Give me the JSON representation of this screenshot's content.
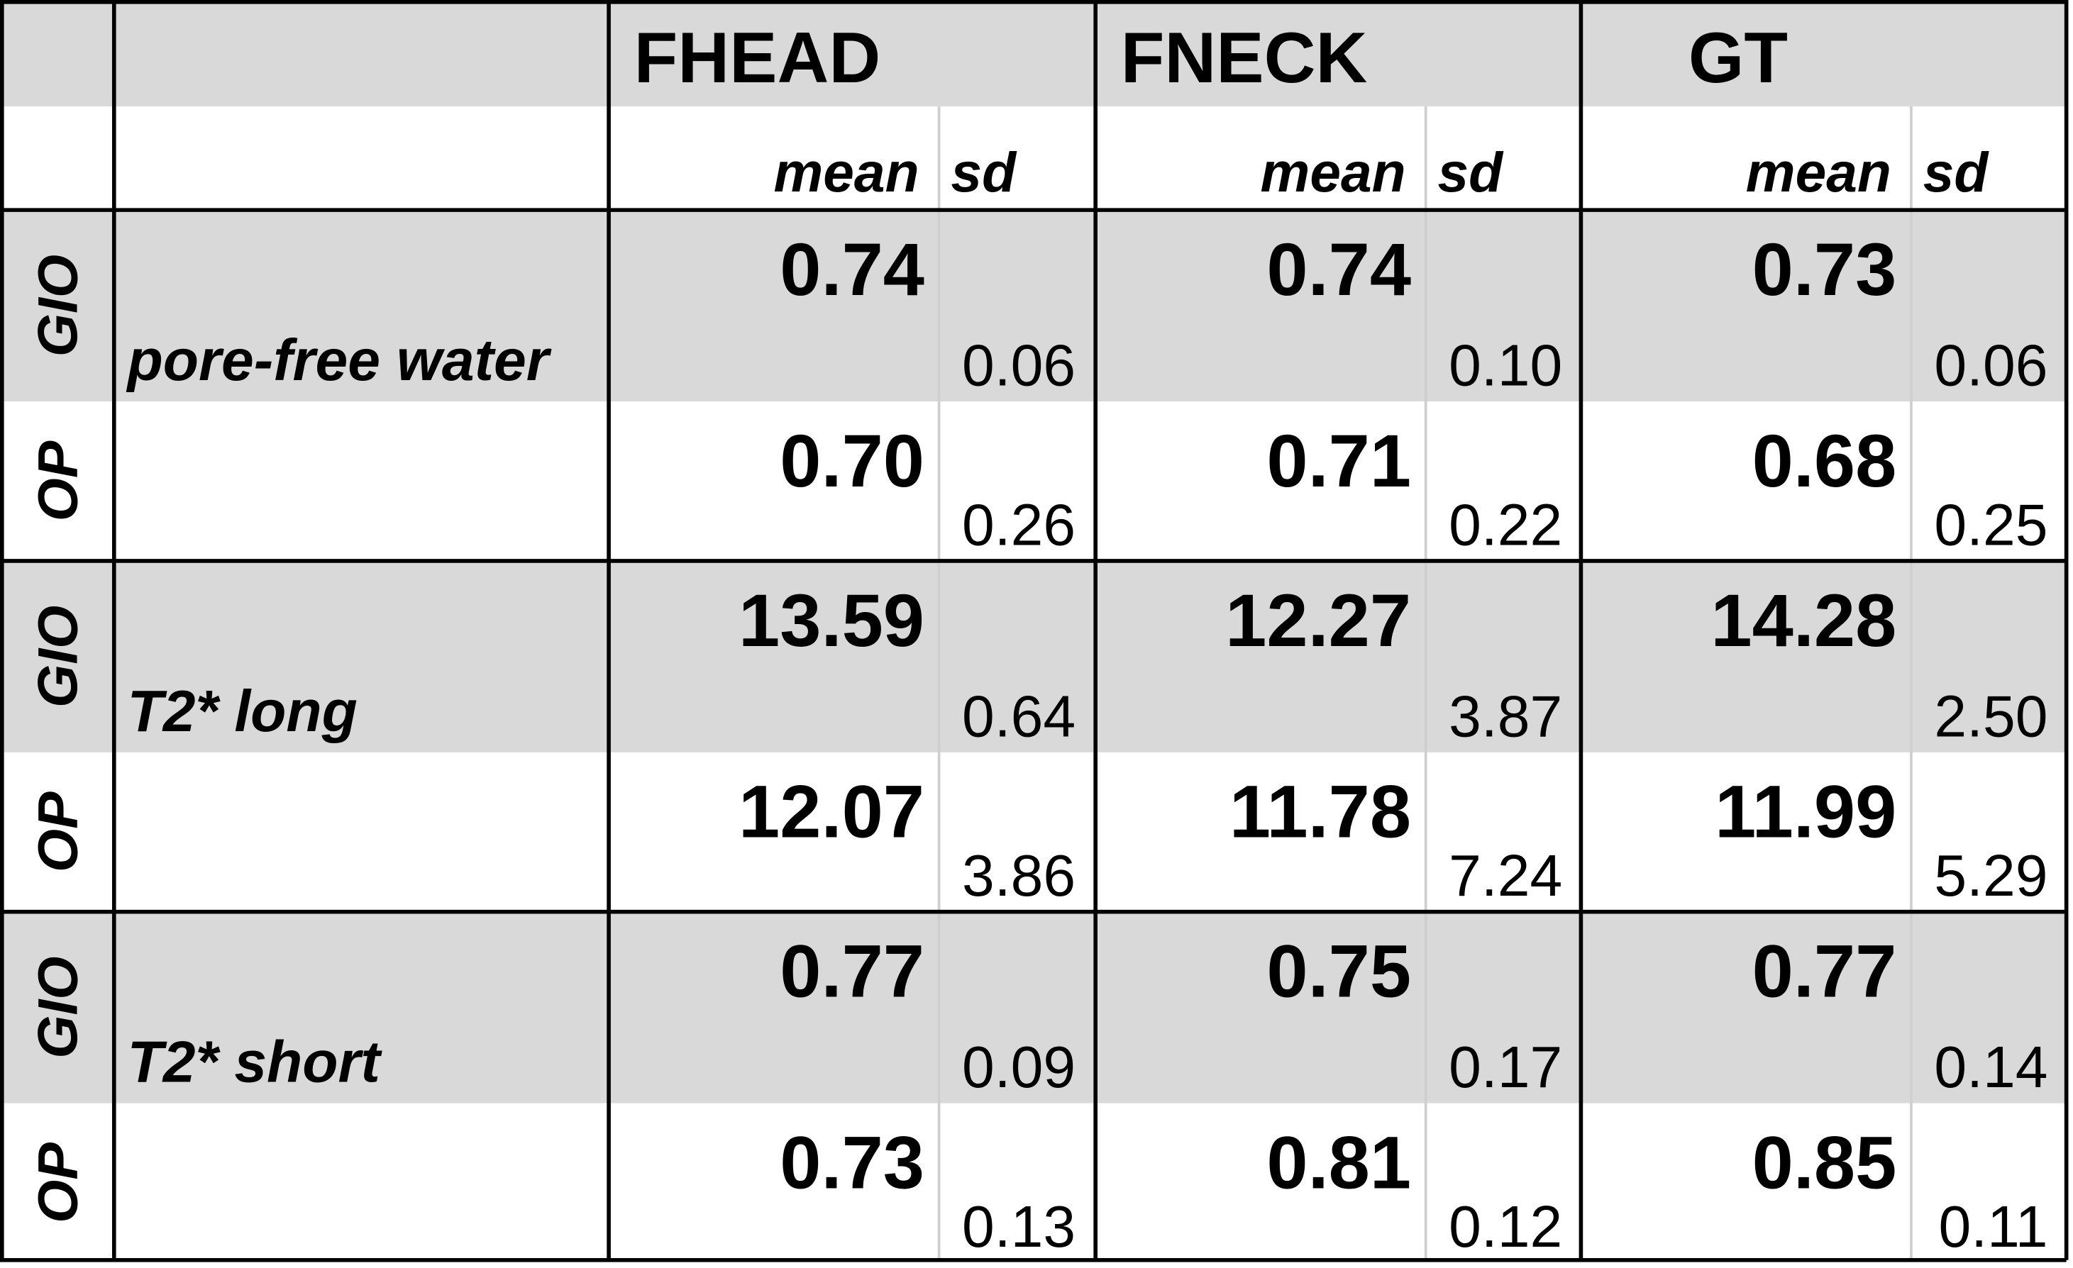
{
  "header": {
    "columns": [
      {
        "name": "FHEAD",
        "mean_label": "mean",
        "sd_label": "sd"
      },
      {
        "name": "FNECK",
        "mean_label": "mean",
        "sd_label": "sd"
      },
      {
        "name": "GT",
        "mean_label": "mean",
        "sd_label": "sd"
      }
    ]
  },
  "groups": [
    {
      "label": "pore-free water",
      "rows": [
        {
          "label": "GIO",
          "values": [
            {
              "mean": "0.74",
              "sd": "0.06"
            },
            {
              "mean": "0.74",
              "sd": "0.10"
            },
            {
              "mean": "0.73",
              "sd": "0.06"
            }
          ]
        },
        {
          "label": "OP",
          "values": [
            {
              "mean": "0.70",
              "sd": "0.26"
            },
            {
              "mean": "0.71",
              "sd": "0.22"
            },
            {
              "mean": "0.68",
              "sd": "0.25"
            }
          ]
        }
      ]
    },
    {
      "label": "T2* long",
      "rows": [
        {
          "label": "GIO",
          "values": [
            {
              "mean": "13.59",
              "sd": "0.64"
            },
            {
              "mean": "12.27",
              "sd": "3.87"
            },
            {
              "mean": "14.28",
              "sd": "2.50"
            }
          ]
        },
        {
          "label": "OP",
          "values": [
            {
              "mean": "12.07",
              "sd": "3.86"
            },
            {
              "mean": "11.78",
              "sd": "7.24"
            },
            {
              "mean": "11.99",
              "sd": "5.29"
            }
          ]
        }
      ]
    },
    {
      "label": "T2* short",
      "rows": [
        {
          "label": "GIO",
          "values": [
            {
              "mean": "0.77",
              "sd": "0.09"
            },
            {
              "mean": "0.75",
              "sd": "0.17"
            },
            {
              "mean": "0.77",
              "sd": "0.14"
            }
          ]
        },
        {
          "label": "OP",
          "values": [
            {
              "mean": "0.73",
              "sd": "0.13"
            },
            {
              "mean": "0.81",
              "sd": "0.12"
            },
            {
              "mean": "0.85",
              "sd": "0.11"
            }
          ]
        }
      ]
    }
  ]
}
